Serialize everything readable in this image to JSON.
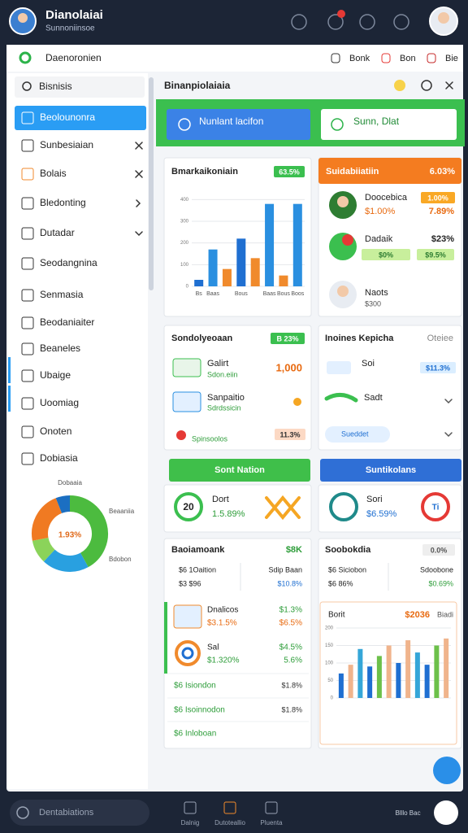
{
  "header": {
    "title": "Dianolaiai",
    "subtitle": "Sunnoniinsoe"
  },
  "toolbar": {
    "search": "Daenoronien",
    "actions": [
      "Bonk",
      "Bon",
      "Bie"
    ]
  },
  "sidebar": {
    "search": "Bisnisis",
    "items": [
      "Beolounonra",
      "Sunbesiaian",
      "Bolais",
      "Bledonting",
      "Dutadar",
      "Seodangnina",
      "Senmasia",
      "Beodaniaiter",
      "Beaneles",
      "Ubaige",
      "Uoomiag",
      "Onoten",
      "Dobiasia"
    ],
    "donut": {
      "type": "pie",
      "title": "Dobaaia",
      "center_label": "1.93%",
      "annotations": [
        "Beaaniia",
        "Bdobon"
      ],
      "values": [
        42,
        20,
        10,
        22,
        6
      ],
      "colors": [
        "#4cbb3f",
        "#29a0e0",
        "#8bd35a",
        "#f07a22",
        "#1b6fc2"
      ]
    }
  },
  "main": {
    "title": "Binanpiolaiaia",
    "buttons": [
      "Nunlant lacifon",
      "Sunn, Dlat"
    ],
    "bar_card": {
      "title": "Bmarkaikoniain",
      "badge": "63.5%",
      "chart": {
        "type": "bar",
        "categories": [
          "Bs",
          "Baas",
          null,
          "Bous",
          null,
          "Baas",
          "Bous",
          "Boos"
        ],
        "values": [
          30,
          170,
          80,
          220,
          130,
          380,
          50,
          380
        ],
        "colors": [
          "#1f6fd1",
          "#2a8fe0",
          "#f08a2c",
          "#1f6fd1",
          "#f08a2c",
          "#2a8fe0",
          "#f08a2c",
          "#2a8fe0"
        ],
        "ylim": [
          0,
          450
        ],
        "yticks": [
          0,
          100,
          200,
          300,
          400
        ],
        "grid": true
      }
    },
    "list_card": {
      "title": "Suidabiiatiin",
      "badge": "6.03%",
      "rows": [
        {
          "name": "Doocebica",
          "sub": "$1.00%",
          "badge": "1.00%",
          "change": "7.89%"
        },
        {
          "name": "Dadaik",
          "chips": [
            "$0%",
            "$9.5%"
          ],
          "change": "$23%"
        },
        {
          "name": "Naots",
          "sub": "$300"
        }
      ]
    },
    "source_card": {
      "title": "Sondolyeoaan",
      "badge": "B 23%",
      "rows": [
        {
          "name": "Galirt",
          "sub": "Sdon.eiin",
          "value": "1,000"
        },
        {
          "name": "Sanpaitio",
          "sub": "Sdrdssicin"
        },
        {
          "name": "Spinsoolos",
          "value": "11.3%"
        }
      ]
    },
    "insight_card": {
      "title": "Inoines Kepicha",
      "action": "Oteiee",
      "rows": [
        {
          "name": "Soi",
          "value": "$11.3%"
        },
        {
          "name": "Sadt"
        },
        {
          "name": "Sueddet"
        }
      ]
    },
    "tabs": [
      "Sont Nation",
      "Suntikolans"
    ],
    "ring_cards": [
      {
        "ring": "20",
        "name": "Dort",
        "value": "1.5.89%"
      },
      {
        "ring": "Ti",
        "name": "Sori",
        "value": "$6.59%"
      }
    ],
    "bank_card": {
      "title": "Baoiamoank",
      "badge": "$8K",
      "summary": [
        "$6 1Oaition",
        "Sdip Baan",
        "$3 $96",
        "$10.8%"
      ],
      "rows": [
        {
          "name": "Dnalicos",
          "sub": "$3.1.5%",
          "value": "$1.3%",
          "value2": "$6.5%"
        },
        {
          "name": "Sal",
          "sub": "$1.320%",
          "value": "$4.5%",
          "value2": "5.6%"
        }
      ],
      "links": [
        {
          "name": "$6 Isiondon",
          "value": "$1.8%"
        },
        {
          "name": "$6 Isoinnodon",
          "value": "$1.8%"
        },
        {
          "name": "$6 Inloboan"
        }
      ]
    },
    "stock_card": {
      "title": "Soobokdia",
      "badge": "0.0%",
      "summary": [
        "$6 Siciobon",
        "Sdoobone",
        "$6 86%",
        "$0.69%"
      ],
      "chart": {
        "type": "bar",
        "title": "Borit",
        "badge": "$2036",
        "note": "Biadi",
        "categories": [
          null,
          null,
          null,
          null,
          null,
          null,
          null,
          null,
          null,
          null,
          null,
          null
        ],
        "values": [
          70,
          95,
          140,
          90,
          120,
          150,
          100,
          165,
          130,
          95,
          150,
          170
        ],
        "colors": [
          "#1f6fd1",
          "#f0b48c",
          "#35a6d8",
          "#1f6fd1",
          "#6cc04a",
          "#f0b48c",
          "#1f6fd1",
          "#f0b48c",
          "#35a6d8",
          "#1f6fd1",
          "#6cc04a",
          "#f0b48c"
        ],
        "ylim": [
          0,
          200
        ],
        "yticks": [
          0,
          50,
          100,
          150,
          200
        ],
        "grid": true
      }
    }
  },
  "bottom": {
    "search": "Dentabiations",
    "tabs": [
      "Dalnig",
      "Dutoteallio",
      "Pluenta"
    ],
    "status": "Blllo Bac"
  }
}
